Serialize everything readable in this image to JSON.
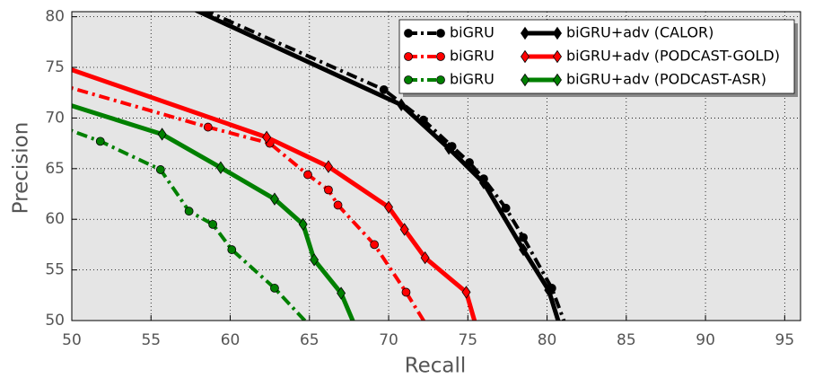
{
  "chart_data": {
    "type": "line",
    "x_label": "Recall",
    "y_label": "Precision",
    "xlim": [
      50,
      96
    ],
    "ylim": [
      50,
      80.5
    ],
    "xticks": [
      50,
      55,
      60,
      65,
      70,
      75,
      80,
      85,
      90,
      95
    ],
    "yticks": [
      50,
      55,
      60,
      65,
      70,
      75,
      80
    ],
    "grid": true,
    "legend": "upper right",
    "series": [
      {
        "name": "biGRU",
        "color": "#000000",
        "linestyle": "dashdot",
        "marker": "o",
        "x": [
          57,
          69.7,
          72.2,
          74,
          75.1,
          76,
          77.4,
          78.5,
          80.3,
          81.3
        ],
        "values": [
          81.6,
          72.8,
          69.8,
          67.2,
          65.6,
          64,
          61.1,
          58.2,
          53.2,
          49
        ]
      },
      {
        "name": "biGRU",
        "color": "#ff0000",
        "linestyle": "dashdot",
        "marker": "o",
        "x": [
          49,
          58.6,
          62.5,
          64.9,
          66.2,
          66.8,
          69.1,
          71.1,
          72.6
        ],
        "values": [
          73.4,
          69.1,
          67.5,
          64.4,
          62.9,
          61.4,
          57.5,
          52.8,
          49
        ]
      },
      {
        "name": "biGRU",
        "color": "#008000",
        "linestyle": "dashdot",
        "marker": "o",
        "x": [
          49,
          51.8,
          55.6,
          57.4,
          58.9,
          60.1,
          62.8,
          65.3
        ],
        "values": [
          69.3,
          67.7,
          64.9,
          60.8,
          59.5,
          57,
          53.2,
          49
        ]
      },
      {
        "name": "biGRU+adv (CALOR)",
        "color": "#000000",
        "linestyle": "solid",
        "marker": "d",
        "x": [
          56.5,
          70.8,
          73.8,
          76,
          78.5,
          80.1,
          80.8
        ],
        "values": [
          81.6,
          71.3,
          67,
          63.6,
          57,
          53,
          49.5
        ]
      },
      {
        "name": "biGRU+adv (PODCAST-GOLD)",
        "color": "#ff0000",
        "linestyle": "solid",
        "marker": "d",
        "x": [
          49,
          62.3,
          66.2,
          70,
          71,
          72.3,
          74.9,
          75.6
        ],
        "values": [
          75.3,
          68.1,
          65.2,
          61.2,
          59,
          56.2,
          52.8,
          49
        ]
      },
      {
        "name": "biGRU+adv (PODCAST-ASR)",
        "color": "#008000",
        "linestyle": "solid",
        "marker": "d",
        "x": [
          49,
          55.7,
          59.4,
          62.8,
          64.6,
          65.3,
          67,
          68
        ],
        "values": [
          71.7,
          68.4,
          65.1,
          62,
          59.5,
          56,
          52.7,
          49
        ]
      }
    ]
  }
}
